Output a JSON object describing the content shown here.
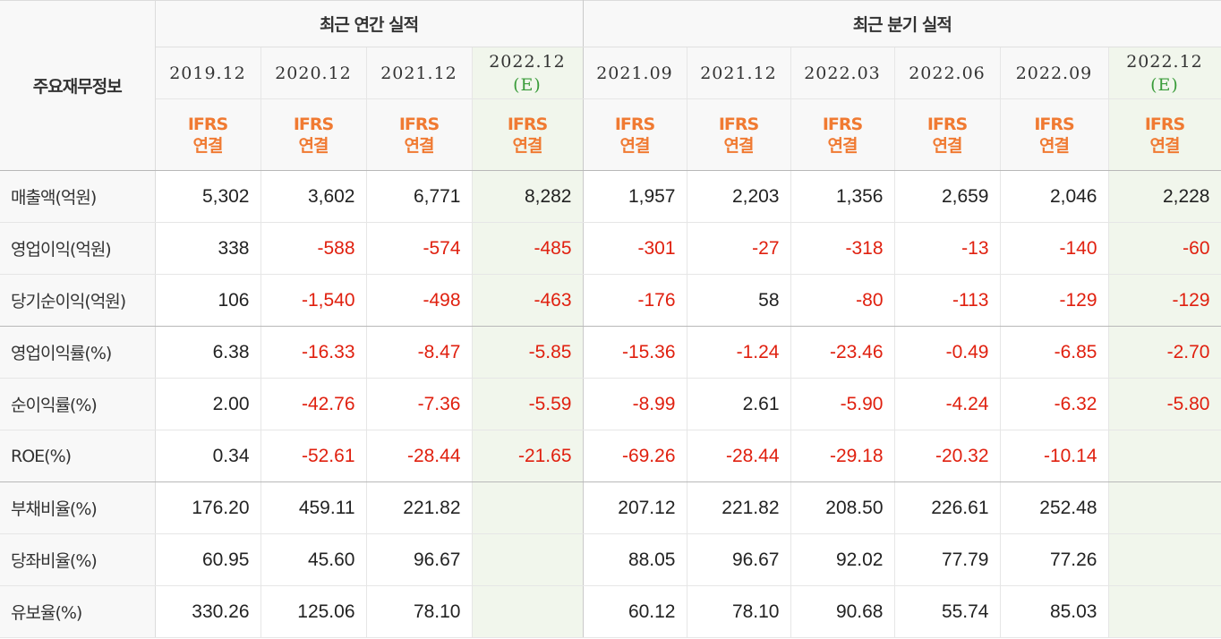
{
  "table": {
    "row_header_label": "주요재무정보",
    "annual_title": "최근 연간 실적",
    "quarterly_title": "최근 분기 실적",
    "columns": [
      {
        "period": "2019.12",
        "estimate": "",
        "basis_line1": "IFRS",
        "basis_line2": "연결"
      },
      {
        "period": "2020.12",
        "estimate": "",
        "basis_line1": "IFRS",
        "basis_line2": "연결"
      },
      {
        "period": "2021.12",
        "estimate": "",
        "basis_line1": "IFRS",
        "basis_line2": "연결"
      },
      {
        "period": "2022.12",
        "estimate": "(E)",
        "basis_line1": "IFRS",
        "basis_line2": "연결"
      },
      {
        "period": "2021.09",
        "estimate": "",
        "basis_line1": "IFRS",
        "basis_line2": "연결"
      },
      {
        "period": "2021.12",
        "estimate": "",
        "basis_line1": "IFRS",
        "basis_line2": "연결"
      },
      {
        "period": "2022.03",
        "estimate": "",
        "basis_line1": "IFRS",
        "basis_line2": "연결"
      },
      {
        "period": "2022.06",
        "estimate": "",
        "basis_line1": "IFRS",
        "basis_line2": "연결"
      },
      {
        "period": "2022.09",
        "estimate": "",
        "basis_line1": "IFRS",
        "basis_line2": "연결"
      },
      {
        "period": "2022.12",
        "estimate": "(E)",
        "basis_line1": "IFRS",
        "basis_line2": "연결"
      }
    ],
    "rows": [
      {
        "label": "매출액(억원)",
        "values": [
          "5,302",
          "3,602",
          "6,771",
          "8,282",
          "1,957",
          "2,203",
          "1,356",
          "2,659",
          "2,046",
          "2,228"
        ]
      },
      {
        "label": "영업이익(억원)",
        "values": [
          "338",
          "-588",
          "-574",
          "-485",
          "-301",
          "-27",
          "-318",
          "-13",
          "-140",
          "-60"
        ]
      },
      {
        "label": "당기순이익(억원)",
        "values": [
          "106",
          "-1,540",
          "-498",
          "-463",
          "-176",
          "58",
          "-80",
          "-113",
          "-129",
          "-129"
        ]
      },
      {
        "label": "영업이익률(%)",
        "values": [
          "6.38",
          "-16.33",
          "-8.47",
          "-5.85",
          "-15.36",
          "-1.24",
          "-23.46",
          "-0.49",
          "-6.85",
          "-2.70"
        ]
      },
      {
        "label": "순이익률(%)",
        "values": [
          "2.00",
          "-42.76",
          "-7.36",
          "-5.59",
          "-8.99",
          "2.61",
          "-5.90",
          "-4.24",
          "-6.32",
          "-5.80"
        ]
      },
      {
        "label": "ROE(%)",
        "values": [
          "0.34",
          "-52.61",
          "-28.44",
          "-21.65",
          "-69.26",
          "-28.44",
          "-29.18",
          "-20.32",
          "-10.14",
          ""
        ]
      },
      {
        "label": "부채비율(%)",
        "values": [
          "176.20",
          "459.11",
          "221.82",
          "",
          "207.12",
          "221.82",
          "208.50",
          "226.61",
          "252.48",
          ""
        ]
      },
      {
        "label": "당좌비율(%)",
        "values": [
          "60.95",
          "45.60",
          "96.67",
          "",
          "88.05",
          "96.67",
          "92.02",
          "77.79",
          "77.26",
          ""
        ]
      },
      {
        "label": "유보율(%)",
        "values": [
          "330.26",
          "125.06",
          "78.10",
          "",
          "60.12",
          "78.10",
          "90.68",
          "55.74",
          "85.03",
          ""
        ]
      }
    ],
    "negative_color": "#e0200f",
    "estimate_bg": "#f1f6ec",
    "basis_color": "#f07a32"
  }
}
